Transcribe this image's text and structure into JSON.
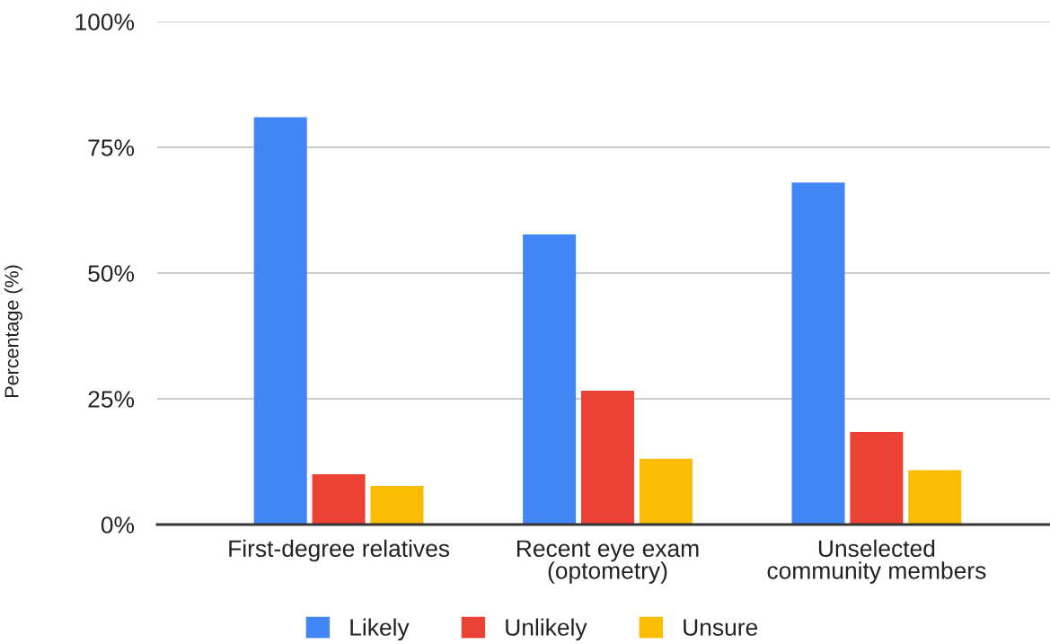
{
  "chart_data": {
    "type": "bar",
    "ylabel": "Percentage (%)",
    "categories": [
      "First-degree relatives",
      "Recent eye exam\n(optometry)",
      "Unselected\ncommunity members"
    ],
    "series": [
      {
        "name": "Likely",
        "color": "#4285f4",
        "values": [
          81,
          57.7,
          68
        ]
      },
      {
        "name": "Unlikely",
        "color": "#ea4335",
        "values": [
          10,
          26.6,
          18.4
        ]
      },
      {
        "name": "Unsure",
        "color": "#fbbc04",
        "values": [
          7.7,
          13.1,
          10.8
        ]
      }
    ],
    "ylim": [
      0,
      100
    ],
    "yticks": [
      {
        "value": 0,
        "label": "0%"
      },
      {
        "value": 25,
        "label": "25%"
      },
      {
        "value": 50,
        "label": "50%"
      },
      {
        "value": 75,
        "label": "75%"
      },
      {
        "value": 100,
        "label": "100%"
      }
    ],
    "grid": "y",
    "legend": "bottom"
  }
}
